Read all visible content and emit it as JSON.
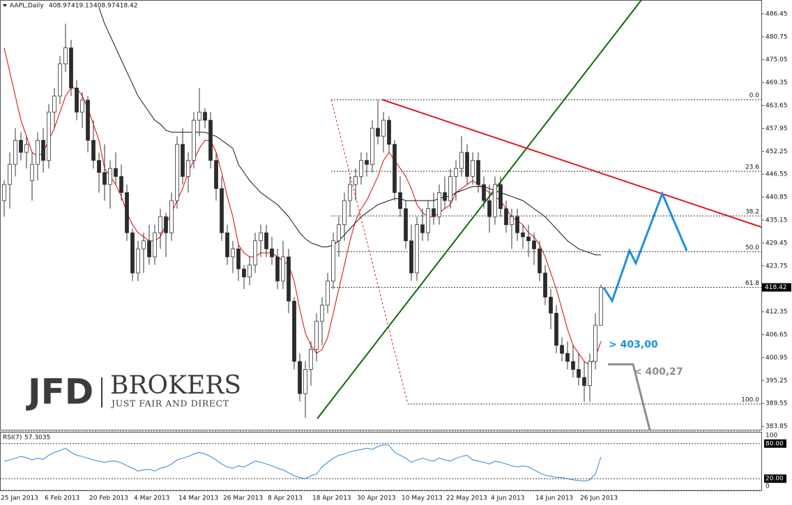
{
  "chart_data": {
    "type": "candlestick",
    "title": "AAPL,Daily",
    "categories": [
      "25 Jan 2013",
      null,
      null,
      null,
      null,
      null,
      null,
      null,
      "6 Feb 2013",
      null,
      null,
      null,
      null,
      null,
      null,
      null,
      "20 Feb 2013",
      null,
      null,
      null,
      null,
      null,
      null,
      null,
      "4 Mar 2013",
      null,
      null,
      null,
      null,
      null,
      null,
      null,
      "14 Mar 2013",
      null,
      null,
      null,
      null,
      null,
      null,
      null,
      "26 Mar 2013",
      null,
      null,
      null,
      null,
      null,
      null,
      null,
      "8 Apr 2013",
      null,
      null,
      null,
      null,
      null,
      null,
      null,
      "18 Apr 2013",
      null,
      null,
      null,
      null,
      null,
      null,
      null,
      "30 Apr 2013",
      null,
      null,
      null,
      null,
      null,
      null,
      null,
      "10 May 2013",
      null,
      null,
      null,
      null,
      null,
      null,
      null,
      "22 May 2013",
      null,
      null,
      null,
      null,
      null,
      null,
      null,
      "4 Jun 2013",
      null,
      null,
      null,
      null,
      null,
      null,
      null,
      "14 Jun 2013",
      null,
      null,
      null,
      null,
      null,
      null,
      null,
      "26 Jun 2013",
      null,
      null,
      null
    ],
    "candles": [
      [
        440,
        445,
        436,
        444
      ],
      [
        444,
        452,
        438,
        449
      ],
      [
        449,
        458,
        446,
        455
      ],
      [
        455,
        457,
        450,
        452
      ],
      [
        452,
        456,
        448,
        454
      ],
      [
        445,
        452,
        440,
        449
      ],
      [
        449,
        457,
        445,
        455
      ],
      [
        455,
        458,
        447,
        450
      ],
      [
        450,
        464,
        448,
        462
      ],
      [
        462,
        468,
        458,
        466
      ],
      [
        466,
        476,
        464,
        474
      ],
      [
        474,
        484,
        472,
        478
      ],
      [
        478,
        480,
        466,
        468
      ],
      [
        468,
        470,
        460,
        462
      ],
      [
        462,
        467,
        458,
        465
      ],
      [
        465,
        466,
        452,
        455
      ],
      [
        455,
        460,
        448,
        450
      ],
      [
        450,
        452,
        442,
        447
      ],
      [
        447,
        454,
        440,
        444
      ],
      [
        444,
        450,
        438,
        448
      ],
      [
        448,
        452,
        444,
        446
      ],
      [
        446,
        449,
        440,
        442
      ],
      [
        442,
        444,
        430,
        432
      ],
      [
        432,
        433,
        420,
        422
      ],
      [
        422,
        430,
        420,
        428
      ],
      [
        428,
        432,
        422,
        430
      ],
      [
        430,
        434,
        424,
        426
      ],
      [
        426,
        434,
        424,
        432
      ],
      [
        432,
        438,
        428,
        436
      ],
      [
        436,
        437,
        426,
        432
      ],
      [
        432,
        442,
        430,
        440
      ],
      [
        440,
        456,
        438,
        454
      ],
      [
        454,
        458,
        444,
        446
      ],
      [
        446,
        452,
        442,
        450
      ],
      [
        450,
        462,
        448,
        460
      ],
      [
        460,
        468,
        456,
        462
      ],
      [
        462,
        463,
        458,
        460
      ],
      [
        460,
        462,
        448,
        450
      ],
      [
        450,
        452,
        440,
        443
      ],
      [
        443,
        446,
        430,
        432
      ],
      [
        432,
        434,
        424,
        426
      ],
      [
        426,
        430,
        422,
        428
      ],
      [
        428,
        429,
        420,
        423
      ],
      [
        423,
        424,
        418,
        421
      ],
      [
        421,
        426,
        419,
        424
      ],
      [
        424,
        432,
        422,
        430
      ],
      [
        430,
        434,
        426,
        432
      ],
      [
        432,
        434,
        426,
        428
      ],
      [
        428,
        431,
        424,
        426
      ],
      [
        426,
        428,
        418,
        420
      ],
      [
        420,
        430,
        418,
        426
      ],
      [
        426,
        428,
        412,
        415
      ],
      [
        415,
        416,
        398,
        400
      ],
      [
        400,
        402,
        390,
        392
      ],
      [
        392,
        400,
        386,
        398
      ],
      [
        398,
        405,
        394,
        403
      ],
      [
        403,
        412,
        400,
        410
      ],
      [
        410,
        416,
        404,
        414
      ],
      [
        414,
        422,
        412,
        420
      ],
      [
        420,
        432,
        418,
        430
      ],
      [
        430,
        436,
        426,
        434
      ],
      [
        434,
        442,
        430,
        440
      ],
      [
        440,
        446,
        436,
        444
      ],
      [
        444,
        448,
        440,
        446
      ],
      [
        446,
        452,
        444,
        450
      ],
      [
        450,
        452,
        446,
        449
      ],
      [
        449,
        460,
        447,
        458
      ],
      [
        458,
        465,
        454,
        456
      ],
      [
        456,
        462,
        452,
        460
      ],
      [
        460,
        461,
        452,
        454
      ],
      [
        454,
        455,
        440,
        442
      ],
      [
        442,
        446,
        436,
        438
      ],
      [
        438,
        440,
        428,
        430
      ],
      [
        430,
        434,
        420,
        422
      ],
      [
        422,
        436,
        420,
        434
      ],
      [
        434,
        438,
        430,
        432
      ],
      [
        432,
        440,
        430,
        438
      ],
      [
        438,
        442,
        434,
        436
      ],
      [
        436,
        444,
        434,
        442
      ],
      [
        442,
        446,
        438,
        440
      ],
      [
        440,
        448,
        438,
        446
      ],
      [
        446,
        450,
        440,
        448
      ],
      [
        448,
        456,
        446,
        452
      ],
      [
        452,
        454,
        444,
        446
      ],
      [
        446,
        452,
        444,
        450
      ],
      [
        450,
        452,
        442,
        444
      ],
      [
        444,
        446,
        438,
        440
      ],
      [
        440,
        444,
        432,
        436
      ],
      [
        436,
        446,
        434,
        444
      ],
      [
        444,
        446,
        436,
        438
      ],
      [
        438,
        440,
        432,
        434
      ],
      [
        434,
        438,
        428,
        436
      ],
      [
        436,
        438,
        430,
        432
      ],
      [
        432,
        434,
        428,
        431
      ],
      [
        431,
        434,
        426,
        430
      ],
      [
        430,
        432,
        424,
        428
      ],
      [
        428,
        430,
        420,
        422
      ],
      [
        422,
        424,
        414,
        416
      ],
      [
        416,
        418,
        408,
        412
      ],
      [
        412,
        414,
        402,
        404
      ],
      [
        404,
        406,
        400,
        402
      ],
      [
        402,
        405,
        398,
        400
      ],
      [
        400,
        404,
        396,
        398
      ],
      [
        398,
        402,
        394,
        396
      ],
      [
        396,
        400,
        390,
        394
      ],
      [
        394,
        402,
        390,
        400
      ],
      [
        400,
        412,
        398,
        409
      ],
      [
        408.97,
        419.13,
        408.97,
        418.42
      ]
    ],
    "bull_color": "#ffffff",
    "bear_color": "#2b2b2b",
    "moving_averages": [
      {
        "color": "#e00000",
        "values": [
          478,
          472,
          466,
          460,
          456,
          452,
          451,
          452,
          455,
          458,
          462,
          466,
          468,
          468,
          466,
          463,
          459,
          455,
          448,
          446,
          444,
          441,
          437,
          434,
          432,
          431,
          430,
          430,
          431,
          434,
          437,
          440,
          443,
          447,
          450,
          453,
          455,
          455,
          452,
          447,
          441,
          436,
          429,
          427,
          426,
          426,
          427,
          427,
          427,
          426,
          425,
          424,
          420,
          413,
          407,
          404,
          402,
          403,
          406,
          412,
          418,
          424,
          430,
          435,
          438,
          440,
          443,
          446,
          450,
          452,
          450,
          448,
          446,
          443,
          439,
          437,
          436,
          436,
          437,
          438,
          439,
          442,
          443,
          444,
          445,
          444,
          443,
          442,
          441,
          440,
          438,
          436,
          435,
          434,
          432,
          431,
          429,
          426,
          422,
          418,
          413,
          408,
          404,
          402,
          400,
          399,
          401,
          405
        ]
      },
      {
        "color": "#111111",
        "values": [
          null,
          null,
          null,
          null,
          null,
          null,
          null,
          null,
          null,
          null,
          null,
          null,
          null,
          null,
          null,
          null,
          null,
          488,
          484,
          481,
          478,
          475,
          472,
          469,
          466,
          464,
          462,
          460,
          459,
          457.5,
          457,
          457,
          457,
          457,
          457,
          457,
          457,
          456.5,
          456,
          455,
          454,
          453,
          449,
          447,
          445,
          443.5,
          442,
          441,
          440,
          439,
          437.5,
          436,
          434,
          432,
          430.5,
          429.5,
          429,
          428.5,
          428.5,
          429,
          430,
          431.5,
          433,
          434.5,
          436,
          437,
          438,
          439,
          439.5,
          440,
          440.5,
          440.5,
          440,
          440,
          440,
          440,
          440,
          440,
          440.5,
          441,
          441,
          442,
          442.5,
          443,
          443.5,
          443.5,
          443.5,
          443,
          442.5,
          442,
          441.5,
          441,
          440.5,
          440,
          439,
          438,
          437,
          436,
          434.5,
          433,
          431.5,
          430,
          429,
          428,
          427.5,
          427,
          426.5,
          426.5
        ]
      }
    ],
    "ylim": [
      383.0,
      489.9
    ],
    "yticks": [
      486.45,
      480.75,
      475.05,
      469.35,
      463.65,
      457.95,
      452.25,
      446.55,
      440.85,
      435.15,
      429.45,
      423.75,
      412.35,
      406.65,
      400.95,
      395.25,
      389.55,
      383.85
    ],
    "fib_levels": [
      {
        "label": "0.0",
        "price": 465.1
      },
      {
        "label": "23.6",
        "price": 447.3
      },
      {
        "label": "38.2",
        "price": 436.2
      },
      {
        "label": "50.0",
        "price": 427.3
      },
      {
        "label": "61.8",
        "price": 418.4
      },
      {
        "label": "100.0",
        "price": 389.4
      }
    ],
    "annotations": [
      {
        "text": "> 403,00",
        "color": "#1a8fe3"
      },
      {
        "text": "< 400,27",
        "color": "#8c8c8c"
      }
    ],
    "rsi": {
      "name": "RSI(7)",
      "color": "#2a86d8",
      "values": [
        50,
        52,
        55,
        58,
        56,
        52,
        55,
        53,
        60,
        65,
        68,
        72,
        65,
        60,
        58,
        55,
        52,
        50,
        48,
        50,
        50,
        47,
        42,
        38,
        33,
        35,
        36,
        33,
        38,
        40,
        45,
        52,
        55,
        58,
        62,
        65,
        62,
        58,
        52,
        45,
        40,
        38,
        42,
        40,
        45,
        50,
        48,
        45,
        42,
        38,
        35,
        30,
        25,
        22,
        20,
        25,
        28,
        40,
        48,
        55,
        60,
        62,
        66,
        68,
        70,
        72,
        70,
        75,
        78,
        77,
        65,
        60,
        55,
        48,
        52,
        55,
        52,
        50,
        55,
        52,
        50,
        55,
        58,
        60,
        52,
        50,
        48,
        45,
        50,
        48,
        45,
        42,
        40,
        42,
        40,
        35,
        30,
        26,
        24,
        22,
        22,
        20,
        18,
        17,
        16,
        18,
        28,
        57.3035
      ],
      "ylim": [
        0,
        100
      ],
      "yticks": [
        100,
        {
          "value": 80,
          "label": "80.00"
        },
        {
          "value": 20,
          "label": "20.00"
        },
        0
      ]
    }
  },
  "logo": {
    "brand": "JFD",
    "name": "BROKERS",
    "tagline": "JUST FAIR AND DIRECT"
  }
}
